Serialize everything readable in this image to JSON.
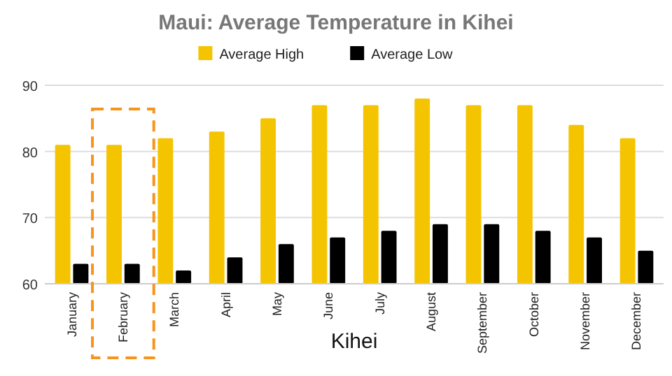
{
  "chart_data": {
    "type": "bar",
    "title": "Maui: Average Temperature in Kihei",
    "xlabel": "Kihei",
    "categories": [
      "January",
      "February",
      "March",
      "April",
      "May",
      "June",
      "July",
      "August",
      "September",
      "October",
      "November",
      "December"
    ],
    "series": [
      {
        "name": "Average High",
        "color": "#f5c400",
        "values": [
          81,
          81,
          82,
          83,
          85,
          87,
          87,
          88,
          87,
          87,
          84,
          82
        ]
      },
      {
        "name": "Average Low",
        "color": "#000000",
        "values": [
          63,
          63,
          62,
          64,
          66,
          67,
          68,
          69,
          69,
          68,
          67,
          65
        ]
      }
    ],
    "ylim": [
      60,
      90
    ],
    "yticks": [
      60,
      70,
      80,
      90
    ],
    "grid": "y",
    "legend": "top"
  }
}
